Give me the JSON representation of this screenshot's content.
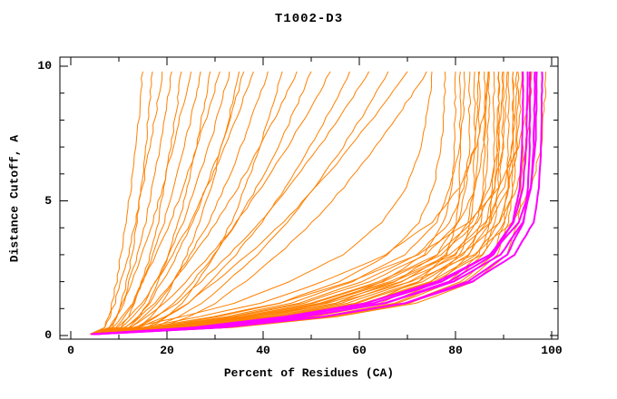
{
  "chart_data": {
    "type": "line",
    "title": "T1002-D3",
    "xlabel": "Percent of Residues (CA)",
    "ylabel": "Distance Cutoff, A",
    "xlim": [
      0,
      100
    ],
    "ylim": [
      0,
      10
    ],
    "x_major_ticks": [
      0,
      20,
      40,
      60,
      80,
      100
    ],
    "x_minor_ticks": [
      10,
      30,
      50,
      70,
      90
    ],
    "y_major_ticks": [
      0,
      5,
      10
    ],
    "y_minor_ticks": [
      1,
      2,
      3,
      4,
      6,
      7,
      8,
      9
    ],
    "grid": false,
    "legend": "none",
    "colors": {
      "orange": "#ff8000",
      "magenta": "#ff00ff",
      "axis": "#000000",
      "background": "#ffffff"
    },
    "cutoffs": [
      0.05,
      0.3,
      0.7,
      1.2,
      2,
      3,
      4.2,
      5.5,
      7,
      8.4,
      9.3,
      9.8
    ],
    "series": [
      {
        "color": "orange",
        "percents": [
          4.0,
          7.0,
          7.9,
          8.6,
          9.5,
          10.5,
          11.5,
          12.5,
          13.5,
          14.3,
          14.7,
          15
        ]
      },
      {
        "color": "orange",
        "percents": [
          4.4,
          8.6,
          9.6,
          10.6,
          11.6,
          12.7,
          13.7,
          14.6,
          15.6,
          16.3,
          16.8,
          17
        ]
      },
      {
        "color": "orange",
        "percents": [
          4.8,
          7.1,
          8.1,
          9.2,
          10.4,
          11.9,
          13.4,
          14.9,
          16.4,
          17.8,
          18.6,
          19
        ]
      },
      {
        "color": "orange",
        "percents": [
          5.2,
          8.2,
          9.6,
          10.8,
          12.2,
          13.9,
          15.5,
          17.0,
          18.5,
          19.8,
          20.6,
          21
        ]
      },
      {
        "color": "orange",
        "percents": [
          5.6,
          10.3,
          11.9,
          13.4,
          14.8,
          16.5,
          18.1,
          19.5,
          20.8,
          22.0,
          22.6,
          23
        ]
      },
      {
        "color": "orange",
        "percents": [
          4.0,
          7.9,
          9.4,
          11.0,
          12.7,
          14.8,
          17.0,
          19.1,
          21.3,
          23.2,
          24.4,
          25
        ]
      },
      {
        "color": "orange",
        "percents": [
          4.4,
          9.4,
          11.3,
          13.0,
          14.9,
          17.2,
          19.4,
          21.5,
          23.6,
          25.4,
          26.4,
          27
        ]
      },
      {
        "color": "orange",
        "percents": [
          4.8,
          12.1,
          14.3,
          16.1,
          18.1,
          20.3,
          22.4,
          24.3,
          26.1,
          27.6,
          28.5,
          29
        ]
      },
      {
        "color": "orange",
        "percents": [
          5.2,
          8.8,
          10.8,
          12.7,
          15.0,
          17.8,
          20.6,
          23.4,
          26.2,
          28.7,
          30.2,
          31
        ]
      },
      {
        "color": "orange",
        "percents": [
          5.6,
          10.7,
          13.0,
          15.2,
          17.6,
          20.5,
          23.3,
          26.0,
          28.7,
          30.9,
          32.3,
          33
        ]
      },
      {
        "color": "orange",
        "percents": [
          4.0,
          13.9,
          16.6,
          18.9,
          21.4,
          24.1,
          26.8,
          29.1,
          31.4,
          33.3,
          34.4,
          35
        ]
      },
      {
        "color": "orange",
        "percents": [
          4.4,
          11.3,
          13.9,
          16.3,
          19.0,
          22.2,
          25.3,
          28.2,
          31.2,
          33.7,
          35.2,
          36
        ]
      },
      {
        "color": "orange",
        "percents": [
          4.8,
          9.8,
          12.3,
          14.8,
          17.7,
          21.2,
          24.9,
          28.3,
          32.0,
          35.1,
          37.0,
          38
        ]
      },
      {
        "color": "orange",
        "percents": [
          5.2,
          12.3,
          15.3,
          18.1,
          21.3,
          24.9,
          28.6,
          32.0,
          35.4,
          38.3,
          40.1,
          41
        ]
      },
      {
        "color": "orange",
        "percents": [
          5.6,
          16.6,
          20.1,
          23.1,
          26.3,
          29.9,
          33.3,
          36.3,
          39.3,
          41.8,
          43.2,
          44
        ]
      },
      {
        "color": "orange",
        "percents": [
          4.0,
          11.2,
          14.3,
          17.5,
          21.2,
          25.6,
          30.3,
          34.7,
          39.3,
          43.3,
          45.7,
          47
        ]
      },
      {
        "color": "orange",
        "percents": [
          4.4,
          14.1,
          17.9,
          21.4,
          25.3,
          29.9,
          34.5,
          38.7,
          43.0,
          46.7,
          48.8,
          50
        ]
      },
      {
        "color": "orange",
        "percents": [
          4.8,
          12.2,
          15.9,
          19.6,
          23.9,
          29.1,
          34.5,
          39.6,
          45.0,
          49.7,
          52.5,
          54
        ]
      },
      {
        "color": "orange",
        "percents": [
          5.2,
          15.7,
          20.1,
          24.3,
          28.9,
          34.3,
          39.7,
          44.7,
          49.8,
          54.1,
          56.6,
          58
        ]
      },
      {
        "color": "orange",
        "percents": [
          5.6,
          13.4,
          17.7,
          22.0,
          27.0,
          33.0,
          39.3,
          45.3,
          51.6,
          57.0,
          60.2,
          62
        ]
      },
      {
        "color": "orange",
        "percents": [
          4.0,
          17.3,
          22.4,
          27.2,
          32.6,
          38.7,
          44.9,
          50.7,
          56.6,
          61.5,
          64.4,
          66
        ]
      },
      {
        "color": "orange",
        "percents": [
          4.4,
          14.5,
          19.5,
          24.3,
          30.1,
          36.9,
          44.1,
          51.0,
          58.1,
          64.3,
          68.0,
          70
        ]
      },
      {
        "color": "orange",
        "percents": [
          4.8,
          18.9,
          24.7,
          30.1,
          36.2,
          43.2,
          50.2,
          56.7,
          63.3,
          68.9,
          72.2,
          74
        ]
      },
      {
        "color": "orange",
        "percents": [
          5.2,
          12.7,
          23.2,
          33.9,
          45.4,
          56.6,
          64.7,
          69.8,
          72.8,
          74.3,
          74.9,
          75.1
        ]
      },
      {
        "color": "orange",
        "percents": [
          5.6,
          17.3,
          30.7,
          43.4,
          55.7,
          66.0,
          72.4,
          75.5,
          77.0,
          77.6,
          77.8,
          77.8
        ]
      },
      {
        "color": "orange",
        "percents": [
          4.0,
          22.7,
          38.9,
          52.9,
          64.9,
          73.4,
          77.6,
          79.2,
          79.8,
          79.9,
          80,
          80
        ]
      },
      {
        "color": "orange",
        "percents": [
          4.4,
          29.1,
          47.7,
          61.9,
          72.2,
          78.1,
          80.2,
          80.8,
          81,
          81,
          81,
          81
        ]
      },
      {
        "color": "orange",
        "percents": [
          4.8,
          18.1,
          32.3,
          45.6,
          58.5,
          69.4,
          76.1,
          78.7,
          81.0,
          81.6,
          81.8,
          81.8
        ]
      },
      {
        "color": "orange",
        "percents": [
          5.2,
          23.5,
          40.4,
          54.9,
          67.3,
          76.2,
          80.5,
          82.2,
          82.8,
          82.9,
          83,
          83
        ]
      },
      {
        "color": "orange",
        "percents": [
          5.6,
          30.1,
          49.5,
          64.2,
          74.9,
          81.0,
          83.2,
          83.8,
          84,
          84,
          84,
          84
        ]
      },
      {
        "color": "orange",
        "percents": [
          4.0,
          18.8,
          33.4,
          47.3,
          60.6,
          72.0,
          78.9,
          81.6,
          83.9,
          84.6,
          84.7,
          84.8
        ]
      },
      {
        "color": "orange",
        "percents": [
          4.4,
          24.1,
          41.4,
          56.2,
          68.9,
          78.0,
          82.4,
          84.1,
          84.8,
          84.9,
          85,
          85
        ]
      },
      {
        "color": "orange",
        "percents": [
          4.8,
          30.9,
          50.6,
          65.7,
          76.7,
          82.9,
          85.2,
          85.8,
          86,
          86,
          86,
          86
        ]
      },
      {
        "color": "orange",
        "percents": [
          5.2,
          19.2,
          34.2,
          48.4,
          62.1,
          73.7,
          80.7,
          84.2,
          85.9,
          86.5,
          86.7,
          86.8
        ]
      },
      {
        "color": "orange",
        "percents": [
          5.6,
          24.7,
          42.3,
          57.6,
          70.6,
          79.9,
          84.4,
          86.1,
          86.7,
          86.9,
          87,
          87
        ]
      },
      {
        "color": "orange",
        "percents": [
          4.0,
          31.6,
          51.8,
          67.2,
          78.5,
          84.9,
          87.2,
          87.8,
          88,
          88,
          88,
          88
        ]
      },
      {
        "color": "orange",
        "percents": [
          4.4,
          14.7,
          26.9,
          39.3,
          52.5,
          65.5,
          75.0,
          80.8,
          84.3,
          86.1,
          86.7,
          87.0
        ]
      },
      {
        "color": "orange",
        "percents": [
          4.8,
          25.2,
          43.3,
          58.9,
          72.2,
          81.7,
          86.3,
          88.1,
          88.7,
          88.9,
          89,
          89
        ]
      },
      {
        "color": "orange",
        "percents": [
          5.2,
          31.9,
          52.4,
          68.0,
          79.4,
          85.8,
          88.2,
          88.8,
          89,
          89,
          89,
          89
        ]
      },
      {
        "color": "orange",
        "percents": [
          5.6,
          19.9,
          35.4,
          50.1,
          64.2,
          76.2,
          83.5,
          87.1,
          88.9,
          89.5,
          89.7,
          89.8
        ]
      },
      {
        "color": "orange",
        "percents": [
          4.0,
          25.5,
          43.8,
          59.5,
          73.0,
          82.6,
          87.3,
          89.1,
          89.7,
          89.9,
          90,
          90
        ]
      },
      {
        "color": "orange",
        "percents": [
          4.4,
          32.7,
          53.6,
          69.5,
          81.1,
          87.8,
          90.1,
          90.8,
          91,
          91,
          91,
          91
        ]
      },
      {
        "color": "orange",
        "percents": [
          4.8,
          20.1,
          35.8,
          50.6,
          64.9,
          77.0,
          84.4,
          88.1,
          89.9,
          90.5,
          90.7,
          90.8
        ]
      },
      {
        "color": "orange",
        "percents": [
          5.2,
          26.1,
          44.8,
          60.9,
          74.6,
          84.4,
          89.2,
          91.1,
          91.7,
          91.9,
          92,
          92
        ]
      },
      {
        "color": "orange",
        "percents": [
          5.6,
          33.0,
          54.2,
          70.3,
          82.0,
          88.7,
          91.1,
          91.8,
          92,
          92,
          92,
          92
        ]
      },
      {
        "color": "orange",
        "percents": [
          4.0,
          20.6,
          36.6,
          51.7,
          66.4,
          78.7,
          86.3,
          90.0,
          91.8,
          92.5,
          92.7,
          92.8
        ]
      },
      {
        "color": "orange",
        "percents": [
          4.4,
          26.4,
          45.3,
          61.5,
          75.4,
          85.4,
          90.2,
          92.1,
          92.7,
          92.9,
          93,
          93
        ]
      },
      {
        "color": "orange",
        "percents": [
          4.8,
          33.7,
          55.4,
          71.8,
          83.8,
          90.6,
          93.1,
          93.8,
          94,
          94,
          94,
          94
        ]
      },
      {
        "color": "orange",
        "percents": [
          5.2,
          20.8,
          37.0,
          52.3,
          67.1,
          79.6,
          87.2,
          91.0,
          92.8,
          93.5,
          93.7,
          93.8
        ]
      },
      {
        "color": "orange",
        "percents": [
          5.6,
          26.9,
          46.2,
          62.9,
          77.1,
          87.2,
          92.1,
          94.0,
          94.7,
          94.9,
          95,
          95
        ]
      },
      {
        "color": "orange",
        "percents": [
          4.0,
          21.2,
          37.8,
          53.4,
          68.5,
          81.3,
          89.1,
          92.9,
          94.8,
          95.5,
          95.7,
          95.8
        ]
      },
      {
        "color": "orange",
        "percents": [
          4.4,
          16.2,
          29.6,
          43.3,
          57.9,
          72.2,
          82.6,
          89.0,
          93.0,
          94.9,
          95.6,
          95.9
        ]
      },
      {
        "color": "orange",
        "percents": [
          4.8,
          21.9,
          39.0,
          55.1,
          70.6,
          83.8,
          91.8,
          95.8,
          97.8,
          98.5,
          98.7,
          98.8
        ]
      },
      {
        "color": "magenta",
        "percents": [
          4.2,
          28.7,
          48.6,
          65.2,
          78.7,
          87.9,
          91.9,
          93.4,
          93.8,
          94,
          94,
          94
        ]
      },
      {
        "color": "magenta",
        "percents": [
          4.6,
          26.9,
          46.2,
          62.9,
          77.1,
          87.2,
          92.1,
          94.0,
          94.7,
          94.9,
          95,
          95
        ]
      },
      {
        "color": "magenta",
        "percents": [
          5.0,
          31.5,
          52.6,
          69.5,
          82.6,
          90.7,
          94.1,
          95.1,
          95.4,
          95.5,
          95.5,
          95.5
        ]
      },
      {
        "color": "magenta",
        "percents": [
          4.4,
          28.4,
          48.4,
          65.4,
          79.6,
          89.4,
          94.0,
          95.7,
          96.3,
          96.4,
          96.5,
          96.5
        ]
      },
      {
        "color": "magenta",
        "percents": [
          4.8,
          25.7,
          44.6,
          61.3,
          76.2,
          87.3,
          93.2,
          95.6,
          96.6,
          96.8,
          96.9,
          96.9
        ]
      },
      {
        "color": "magenta",
        "percents": [
          5.2,
          31.2,
          52.3,
          69.7,
          83.5,
          92.3,
          96.2,
          97.4,
          97.8,
          97.9,
          98,
          98
        ]
      }
    ]
  }
}
